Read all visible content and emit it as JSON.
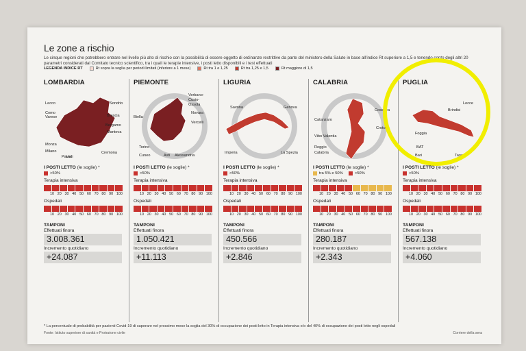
{
  "header": {
    "title": "Le zone a rischio",
    "intro": "Le cinque regioni che potrebbero entrare nel livello più alto di rischio con la possibilità di essere oggetto di ordinanze restrittive da parte del ministero della Salute in base all'indice Rt superiore a 1,5 e tenendo conto degli altri 20 parametri considerati dal Comitato tecnico scientifico, tra i quali le terapie intensive, i posti letto disponibili e i test effettuati",
    "legend_title": "LEGENDA INDICE RT",
    "legend": [
      {
        "label": "Rt sopra la soglia per periodi limitati (inferiore a 1 mese)",
        "color": "#f5d9d0"
      },
      {
        "label": "Rt tra 1 e 1,25",
        "color": "#e07560"
      },
      {
        "label": "Rt tra 1,25 e 1,5",
        "color": "#c13b2f"
      },
      {
        "label": "Rt maggiore di 1,5",
        "color": "#7a1f22"
      }
    ]
  },
  "labels": {
    "posti_letto": "I POSTI LETTO",
    "posti_letto_sub": "(le soglie)",
    "asterisk": "*",
    "terapia": "Terapia intensiva",
    "ospedali": "Ospedali",
    "tamponi": "TAMPONI",
    "effettuati": "Effettuati finora",
    "incremento": "Incremento quotidiano",
    "ticks": [
      "10",
      "20",
      "30",
      "40",
      "50",
      "60",
      "70",
      "80",
      "90",
      "100"
    ]
  },
  "regions": [
    {
      "name": "LOMBARDIA",
      "keys": [
        {
          "label": ">50%",
          "color": "#c8312d"
        }
      ],
      "terapia_yellow": 0,
      "ospedali_yellow": 0,
      "effettuati": "3.008.361",
      "incremento": "+24.087",
      "cities": [
        "Lecco",
        "Sondrio",
        "Como",
        "Varese",
        "Brescia",
        "Bergamo",
        "Mantova",
        "Monza",
        "Milano",
        "Lodi",
        "Pavia",
        "Cremona"
      ]
    },
    {
      "name": "PIEMONTE",
      "keys": [
        {
          "label": ">50%",
          "color": "#c8312d"
        }
      ],
      "terapia_yellow": 0,
      "ospedali_yellow": 0,
      "effettuati": "1.050.421",
      "incremento": "+11.113",
      "cities": [
        "Verbano-",
        "Cusio-",
        "Ossola",
        "Biella",
        "Novara",
        "Vercelli",
        "Torino",
        "Cuneo",
        "Asti",
        "Alessandria"
      ]
    },
    {
      "name": "LIGURIA",
      "keys": [
        {
          "label": ">50%",
          "color": "#c8312d"
        }
      ],
      "terapia_yellow": 0,
      "ospedali_yellow": 0,
      "effettuati": "450.566",
      "incremento": "+2.846",
      "cities": [
        "Savona",
        "Genova",
        "Imperia",
        "La Spezia"
      ]
    },
    {
      "name": "CALABRIA",
      "keys": [
        {
          "label": "tra 5% e 50%",
          "color": "#e8b84d"
        },
        {
          "label": ">50%",
          "color": "#c8312d"
        }
      ],
      "terapia_yellow": 5,
      "ospedali_yellow": 0,
      "effettuati": "280.187",
      "incremento": "+2.343",
      "cities": [
        "Cosenza",
        "Catanzaro",
        "Crotone",
        "Vibo Valentia",
        "Reggio",
        "Calabria"
      ]
    },
    {
      "name": "PUGLIA",
      "keys": [
        {
          "label": ">50%",
          "color": "#c8312d"
        }
      ],
      "terapia_yellow": 0,
      "ospedali_yellow": 0,
      "effettuati": "567.138",
      "incremento": "+4.060",
      "cities": [
        "Lecce",
        "Brindisi",
        "Foggia",
        "BAT",
        "Bari",
        "Taranto"
      ]
    }
  ],
  "footer": {
    "note": "* La percentuale di probabilità per pazienti Covid-19 di superare nel prossimo mese la soglia del 30% di occupazione dei posti letto in Terapia intensiva e/o del 40% di occupazione dei posti letto negli ospedali",
    "source": "Fonte: Istituto superiore di sanità e Protezione civile",
    "credit": "Corriere della sera"
  }
}
